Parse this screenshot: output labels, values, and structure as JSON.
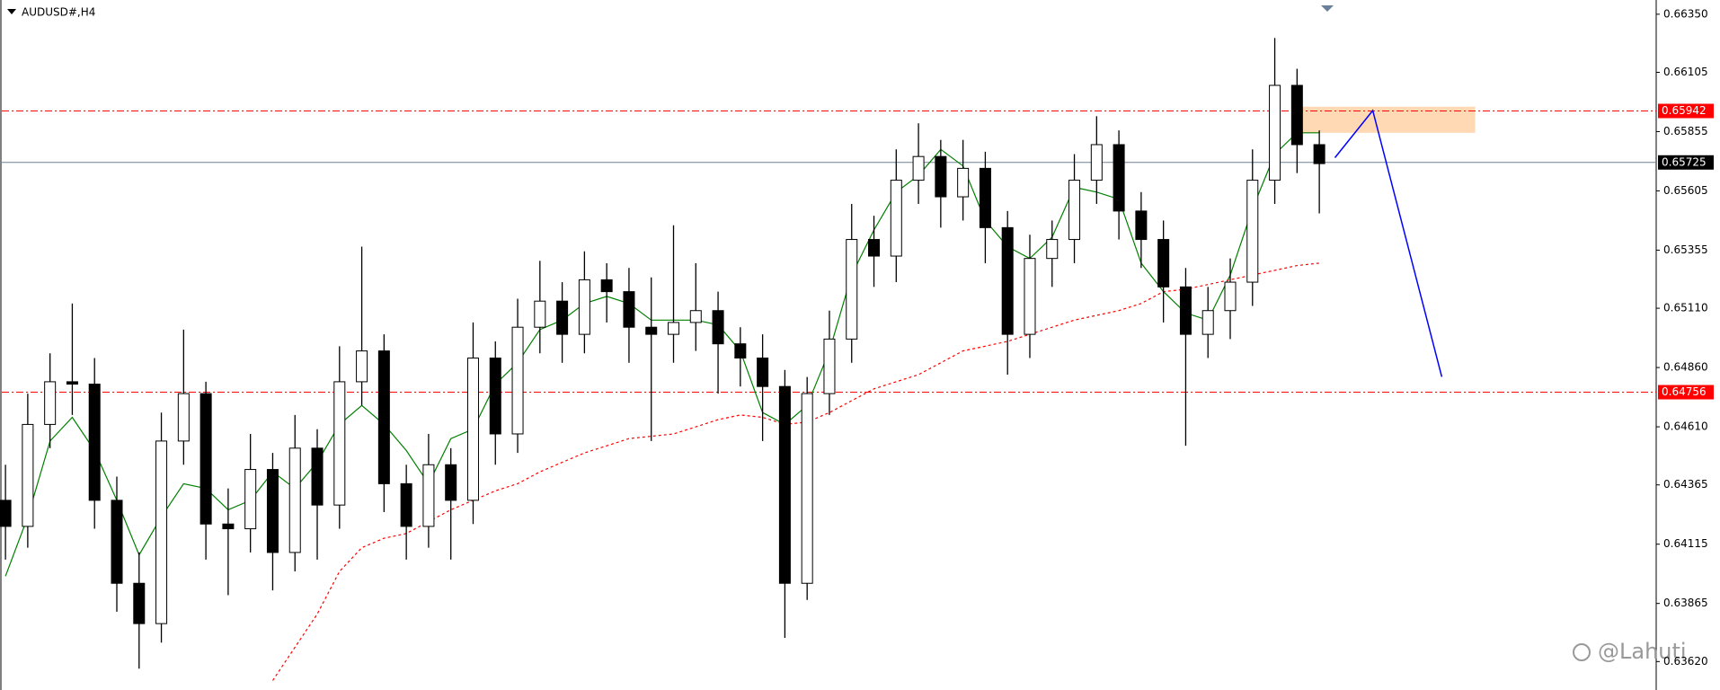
{
  "chart_data": {
    "type": "candlestick",
    "title": "AUDUSD#,H4",
    "watermark": "@Lahuti",
    "ylim": [
      0.635,
      0.6641
    ],
    "yticks": [
      {
        "value": 0.6635,
        "label": "0.66350"
      },
      0.66105,
      0.65855,
      0.65605,
      0.65355,
      {
        "value": 0.6511,
        "label": "0.65110"
      },
      {
        "value": 0.6486,
        "label": "0.64860"
      },
      {
        "value": 0.6461,
        "label": "0.64610"
      },
      0.64365,
      0.64115,
      0.63865,
      {
        "value": 0.6362,
        "label": "0.63620"
      }
    ],
    "up_color": "#ffffff",
    "down_color": "#000000",
    "wick_color": "#000000",
    "open": [
      0.643,
      0.6419,
      0.6462,
      0.648,
      0.6479,
      0.643,
      0.6395,
      0.6378,
      0.6455,
      0.6475,
      0.642,
      0.6418,
      0.6443,
      0.6408,
      0.6452,
      0.6428,
      0.648,
      0.6493,
      0.6437,
      0.6419,
      0.6445,
      0.643,
      0.649,
      0.6458,
      0.6503,
      0.6514,
      0.65,
      0.6523,
      0.6518,
      0.6503,
      0.65,
      0.6505,
      0.651,
      0.6496,
      0.649,
      0.6478,
      0.6395,
      0.6475,
      0.6498,
      0.654,
      0.6533,
      0.6565,
      0.6575,
      0.6558,
      0.657,
      0.6545,
      0.65,
      0.6532,
      0.654,
      0.6565,
      0.658,
      0.6552,
      0.654,
      0.652,
      0.65,
      0.651,
      0.6522,
      0.6565,
      0.6605,
      0.658
    ],
    "high": [
      0.6445,
      0.6475,
      0.6492,
      0.6513,
      0.649,
      0.644,
      0.6408,
      0.6467,
      0.6502,
      0.648,
      0.6435,
      0.6458,
      0.645,
      0.6466,
      0.646,
      0.6495,
      0.6537,
      0.65,
      0.6445,
      0.6458,
      0.6452,
      0.6505,
      0.6497,
      0.6515,
      0.6531,
      0.6522,
      0.6535,
      0.653,
      0.6528,
      0.6524,
      0.6546,
      0.653,
      0.6518,
      0.6503,
      0.65,
      0.6485,
      0.6482,
      0.651,
      0.6555,
      0.655,
      0.6578,
      0.6589,
      0.6582,
      0.6582,
      0.6577,
      0.6552,
      0.6542,
      0.6548,
      0.6576,
      0.6592,
      0.6586,
      0.656,
      0.6548,
      0.6528,
      0.652,
      0.6532,
      0.6578,
      0.6625,
      0.6612,
      0.6586
    ],
    "low": [
      0.6405,
      0.641,
      0.6452,
      0.6466,
      0.6418,
      0.6383,
      0.6359,
      0.637,
      0.6445,
      0.6405,
      0.639,
      0.6408,
      0.6392,
      0.64,
      0.6405,
      0.6418,
      0.647,
      0.6425,
      0.6405,
      0.641,
      0.6405,
      0.642,
      0.6445,
      0.645,
      0.6492,
      0.6488,
      0.6492,
      0.6505,
      0.6488,
      0.6455,
      0.6488,
      0.6493,
      0.6475,
      0.6478,
      0.6455,
      0.6372,
      0.6388,
      0.6466,
      0.6488,
      0.652,
      0.6522,
      0.6555,
      0.6545,
      0.6548,
      0.653,
      0.6483,
      0.649,
      0.652,
      0.653,
      0.6555,
      0.654,
      0.6528,
      0.6505,
      0.6453,
      0.649,
      0.6498,
      0.6512,
      0.6555,
      0.6568,
      0.6551
    ],
    "close": [
      0.6419,
      0.6462,
      0.648,
      0.6479,
      0.643,
      0.6395,
      0.6378,
      0.6455,
      0.6475,
      0.642,
      0.6418,
      0.6443,
      0.6408,
      0.6452,
      0.6428,
      0.648,
      0.6493,
      0.6437,
      0.6419,
      0.6445,
      0.643,
      0.649,
      0.6458,
      0.6503,
      0.6514,
      0.65,
      0.6523,
      0.6518,
      0.6503,
      0.65,
      0.6505,
      0.651,
      0.6496,
      0.649,
      0.6478,
      0.6395,
      0.6475,
      0.6498,
      0.654,
      0.6533,
      0.6565,
      0.6575,
      0.6558,
      0.657,
      0.6545,
      0.65,
      0.6532,
      0.654,
      0.6565,
      0.658,
      0.6552,
      0.654,
      0.652,
      0.65,
      0.651,
      0.6522,
      0.6565,
      0.6605,
      0.658,
      0.6572
    ],
    "moving_averages": [
      {
        "color": "#008000",
        "style": "solid",
        "values": [
          0.6398,
          0.6423,
          0.6455,
          0.6465,
          0.6451,
          0.643,
          0.6407,
          0.6423,
          0.6437,
          0.6435,
          0.6426,
          0.643,
          0.6442,
          0.6435,
          0.6446,
          0.6462,
          0.647,
          0.6462,
          0.6451,
          0.6437,
          0.6456,
          0.646,
          0.6479,
          0.6488,
          0.6502,
          0.6506,
          0.6513,
          0.6516,
          0.6513,
          0.6506,
          0.6506,
          0.6506,
          0.6504,
          0.6493,
          0.6467,
          0.6462,
          0.647,
          0.6493,
          0.6525,
          0.6544,
          0.656,
          0.6567,
          0.6578,
          0.6571,
          0.6548,
          0.6537,
          0.6532,
          0.6541,
          0.6562,
          0.656,
          0.6557,
          0.653,
          0.6518,
          0.6509,
          0.6506,
          0.6525,
          0.6553,
          0.6576,
          0.6585,
          0.6585
        ]
      },
      {
        "color": "#ff0000",
        "style": "dotted",
        "values": [
          null,
          null,
          null,
          null,
          null,
          null,
          null,
          null,
          null,
          null,
          null,
          null,
          0.6354,
          0.6368,
          0.6382,
          0.64,
          0.641,
          0.6414,
          0.6416,
          0.6421,
          0.6426,
          0.643,
          0.6434,
          0.6437,
          0.6442,
          0.6446,
          0.645,
          0.6453,
          0.6456,
          0.6457,
          0.6458,
          0.6461,
          0.6464,
          0.6466,
          0.6465,
          0.6462,
          0.6463,
          0.6467,
          0.6472,
          0.6477,
          0.648,
          0.6483,
          0.6488,
          0.6493,
          0.6495,
          0.6497,
          0.65,
          0.6503,
          0.6506,
          0.6508,
          0.651,
          0.6513,
          0.6518,
          0.6519,
          0.6521,
          0.6523,
          0.6525,
          0.6527,
          0.6529,
          0.653
        ]
      }
    ],
    "levels": [
      {
        "value": 0.65942,
        "color": "#ff0000",
        "style": "dashdot",
        "tag_color": "#ff0000"
      },
      {
        "value": 0.65725,
        "color": "#708090",
        "style": "solid",
        "tag_color": "#000000"
      },
      {
        "value": 0.64756,
        "color": "#ff0000",
        "style": "dashdot",
        "tag_color": "#ff0000"
      }
    ],
    "zone": {
      "x": [
        58.1,
        66.0
      ],
      "y": [
        0.6585,
        0.6596
      ],
      "color": "#ffd9b3"
    },
    "trendline": {
      "x": [
        59.7,
        61.4,
        64.5
      ],
      "y": [
        0.65745,
        0.65944,
        0.64821
      ],
      "color": "#0000ff"
    }
  }
}
